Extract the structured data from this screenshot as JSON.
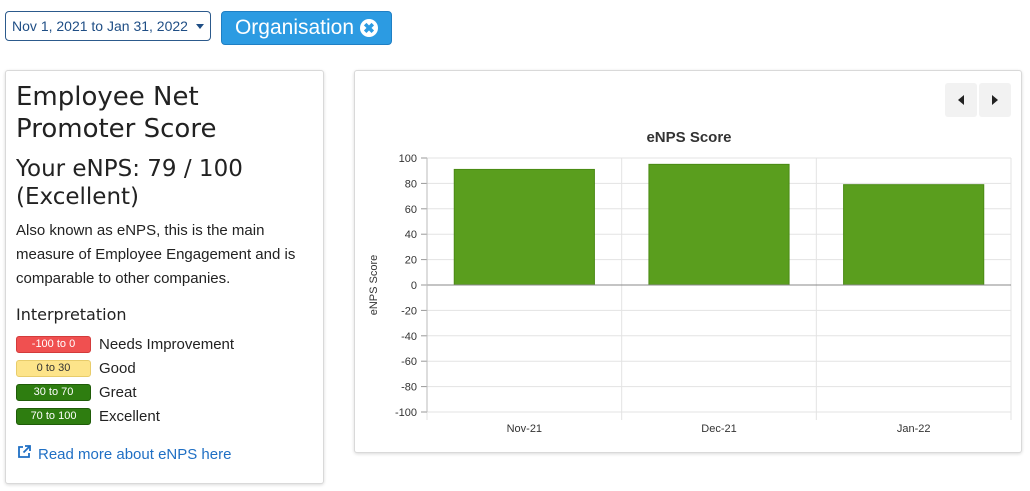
{
  "filters": {
    "date_range": "Nov 1, 2021 to Jan 31, 2022",
    "tag_label": "Organisation",
    "tag_close_glyph": "✖"
  },
  "info": {
    "title": "Employee Net Promoter Score",
    "score_line": "Your eNPS: 79 / 100 (Excellent)",
    "description": "Also known as eNPS, this is the main measure of Employee Engagement and is comparable to other companies.",
    "interpretation_heading": "Interpretation",
    "legend": [
      {
        "range": "-100 to 0",
        "label": "Needs Improvement",
        "bg": "#f05050",
        "fg": "#ffffff",
        "border": "#d33b3b"
      },
      {
        "range": "0 to 30",
        "label": "Good",
        "bg": "#fde48a",
        "fg": "#333333",
        "border": "#e8cc6a"
      },
      {
        "range": "30 to 70",
        "label": "Great",
        "bg": "#2e7d10",
        "fg": "#ffffff",
        "border": "#1f5c08"
      },
      {
        "range": "70 to 100",
        "label": "Excellent",
        "bg": "#2e7d10",
        "fg": "#ffffff",
        "border": "#1f5c08"
      }
    ],
    "read_more": "Read more about eNPS here"
  },
  "chart_nav": {
    "prev_icon": "caret-left-icon",
    "next_icon": "caret-right-icon"
  },
  "chart_data": {
    "type": "bar",
    "title": "eNPS Score",
    "ylabel": "eNPS Score",
    "xlabel": "",
    "categories": [
      "Nov-21",
      "Dec-21",
      "Jan-22"
    ],
    "values": [
      91,
      95,
      79
    ],
    "ylim": [
      -100,
      100
    ],
    "yticks": [
      100,
      80,
      60,
      40,
      20,
      0,
      -20,
      -40,
      -60,
      -80,
      -100
    ],
    "bar_color": "#5a9e1e",
    "grid": true
  }
}
